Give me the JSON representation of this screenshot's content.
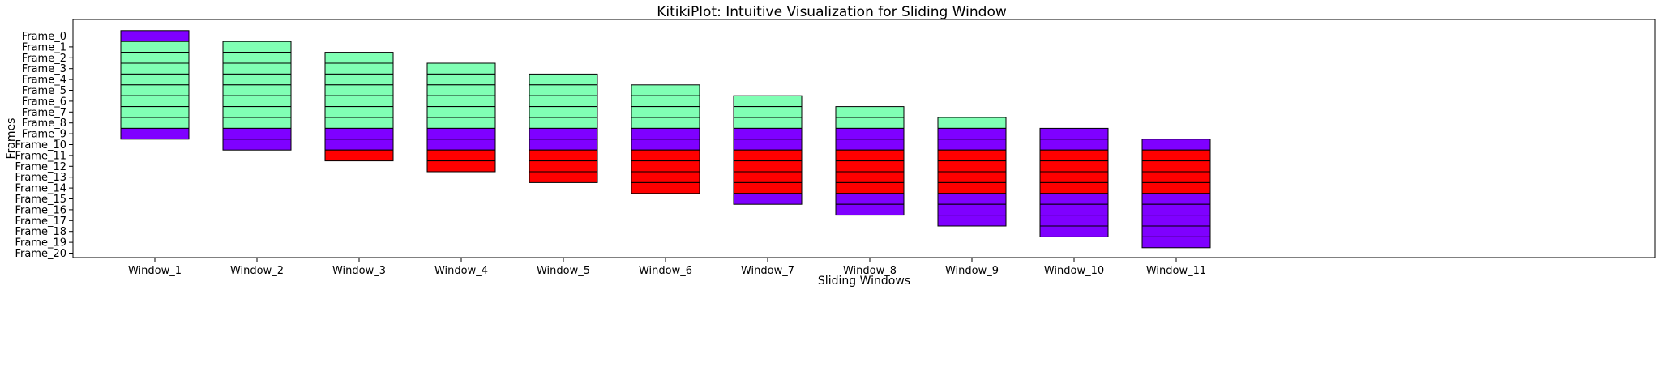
{
  "chart_data": {
    "type": "bar",
    "title": "KitikiPlot: Intuitive Visualization for Sliding Window",
    "xlabel": "Sliding Windows",
    "ylabel": "Frames",
    "categories": [
      "Window_1",
      "Window_2",
      "Window_3",
      "Window_4",
      "Window_5",
      "Window_6",
      "Window_7",
      "Window_8",
      "Window_9",
      "Window_10",
      "Window_11"
    ],
    "frames": [
      "Frame_0",
      "Frame_1",
      "Frame_2",
      "Frame_3",
      "Frame_4",
      "Frame_5",
      "Frame_6",
      "Frame_7",
      "Frame_8",
      "Frame_9",
      "Frame_10",
      "Frame_11",
      "Frame_12",
      "Frame_13",
      "Frame_14",
      "Frame_15",
      "Frame_16",
      "Frame_17",
      "Frame_18",
      "Frame_19",
      "Frame_20"
    ],
    "colors": {
      "a": "#7f00ff",
      "b": "#80ffb4",
      "c": "#ff0000",
      "edge": "#000000"
    },
    "windows": [
      {
        "start": 0,
        "cells": [
          "a",
          "b",
          "b",
          "b",
          "b",
          "b",
          "b",
          "b",
          "b",
          "a"
        ]
      },
      {
        "start": 1,
        "cells": [
          "b",
          "b",
          "b",
          "b",
          "b",
          "b",
          "b",
          "b",
          "a",
          "a"
        ]
      },
      {
        "start": 2,
        "cells": [
          "b",
          "b",
          "b",
          "b",
          "b",
          "b",
          "b",
          "a",
          "a",
          "c"
        ]
      },
      {
        "start": 3,
        "cells": [
          "b",
          "b",
          "b",
          "b",
          "b",
          "b",
          "a",
          "a",
          "c",
          "c"
        ]
      },
      {
        "start": 4,
        "cells": [
          "b",
          "b",
          "b",
          "b",
          "b",
          "a",
          "a",
          "c",
          "c",
          "c"
        ]
      },
      {
        "start": 5,
        "cells": [
          "b",
          "b",
          "b",
          "b",
          "a",
          "a",
          "c",
          "c",
          "c",
          "c"
        ]
      },
      {
        "start": 6,
        "cells": [
          "b",
          "b",
          "b",
          "a",
          "a",
          "c",
          "c",
          "c",
          "c",
          "a"
        ]
      },
      {
        "start": 7,
        "cells": [
          "b",
          "b",
          "a",
          "a",
          "c",
          "c",
          "c",
          "c",
          "a",
          "a"
        ]
      },
      {
        "start": 8,
        "cells": [
          "b",
          "a",
          "a",
          "c",
          "c",
          "c",
          "c",
          "a",
          "a",
          "a"
        ]
      },
      {
        "start": 9,
        "cells": [
          "a",
          "a",
          "c",
          "c",
          "c",
          "c",
          "a",
          "a",
          "a",
          "a"
        ]
      },
      {
        "start": 10,
        "cells": [
          "a",
          "c",
          "c",
          "c",
          "c",
          "a",
          "a",
          "a",
          "a",
          "a"
        ]
      }
    ],
    "grid": false,
    "legend": "none"
  }
}
